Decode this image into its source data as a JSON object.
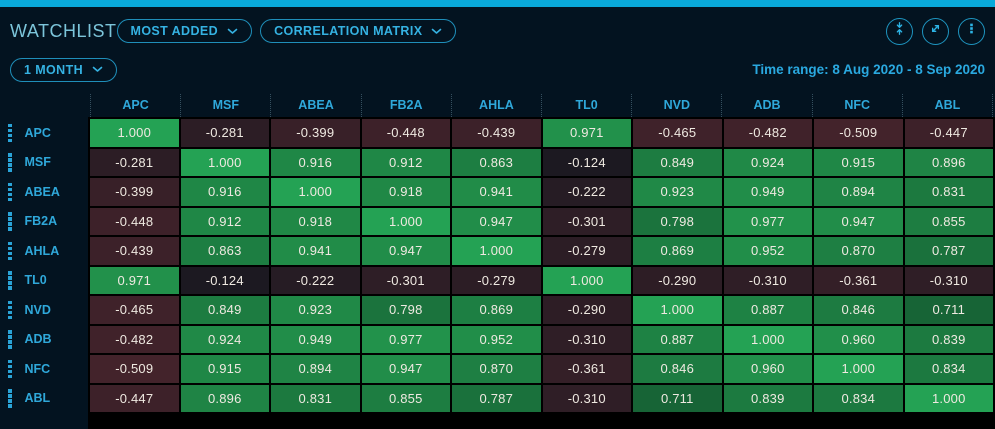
{
  "widget": {
    "title": "WATCHLIST",
    "view_dropdowns": [
      {
        "label": "MOST ADDED"
      },
      {
        "label": "CORRELATION MATRIX"
      }
    ],
    "window_icons": [
      "collapse-vertical-icon",
      "expand-icon",
      "kebab-menu-icon"
    ],
    "period_dropdown": "1 MONTH",
    "time_range": "Time range: 8 Aug 2020 - 8 Sep 2020"
  },
  "chart_data": {
    "type": "heatmap",
    "title": "Correlation matrix",
    "categories": [
      "APC",
      "MSF",
      "ABEA",
      "FB2A",
      "AHLA",
      "TL0",
      "NVD",
      "ADB",
      "NFC",
      "ABL"
    ],
    "matrix": [
      [
        1.0,
        -0.281,
        -0.399,
        -0.448,
        -0.439,
        0.971,
        -0.465,
        -0.482,
        -0.509,
        -0.447
      ],
      [
        -0.281,
        1.0,
        0.916,
        0.912,
        0.863,
        -0.124,
        0.849,
        0.924,
        0.915,
        0.896
      ],
      [
        -0.399,
        0.916,
        1.0,
        0.918,
        0.941,
        -0.222,
        0.923,
        0.949,
        0.894,
        0.831
      ],
      [
        -0.448,
        0.912,
        0.918,
        1.0,
        0.947,
        -0.301,
        0.798,
        0.977,
        0.947,
        0.855
      ],
      [
        -0.439,
        0.863,
        0.941,
        0.947,
        1.0,
        -0.279,
        0.869,
        0.952,
        0.87,
        0.787
      ],
      [
        0.971,
        -0.124,
        -0.222,
        -0.301,
        -0.279,
        1.0,
        -0.29,
        -0.31,
        -0.361,
        -0.31
      ],
      [
        -0.465,
        0.849,
        0.923,
        0.798,
        0.869,
        -0.29,
        1.0,
        0.887,
        0.846,
        0.711
      ],
      [
        -0.482,
        0.924,
        0.949,
        0.977,
        0.952,
        -0.31,
        0.887,
        1.0,
        0.96,
        0.839
      ],
      [
        -0.509,
        0.915,
        0.894,
        0.947,
        0.87,
        -0.361,
        0.846,
        0.96,
        1.0,
        0.834
      ],
      [
        -0.447,
        0.896,
        0.831,
        0.855,
        0.787,
        -0.31,
        0.711,
        0.839,
        0.834,
        1.0
      ]
    ],
    "value_decimals": 3,
    "color_scale": {
      "positive_low": "#0e3f25",
      "positive_high": "#23964d",
      "diagonal": "#24a254",
      "negative_low": "#10161e",
      "negative_high": "#47242c",
      "positive_domain": [
        0.5,
        1.0
      ],
      "negative_domain": [
        0.0,
        -0.55
      ]
    },
    "legend": "none",
    "grid": "black 2px separators"
  },
  "colors": {
    "top_bar": "#09a9da",
    "background": "#031320",
    "accent": "#29a9dc",
    "title_text": "#7cc5da",
    "cell_text": "#efe9e1",
    "grid_line": "#000000"
  }
}
